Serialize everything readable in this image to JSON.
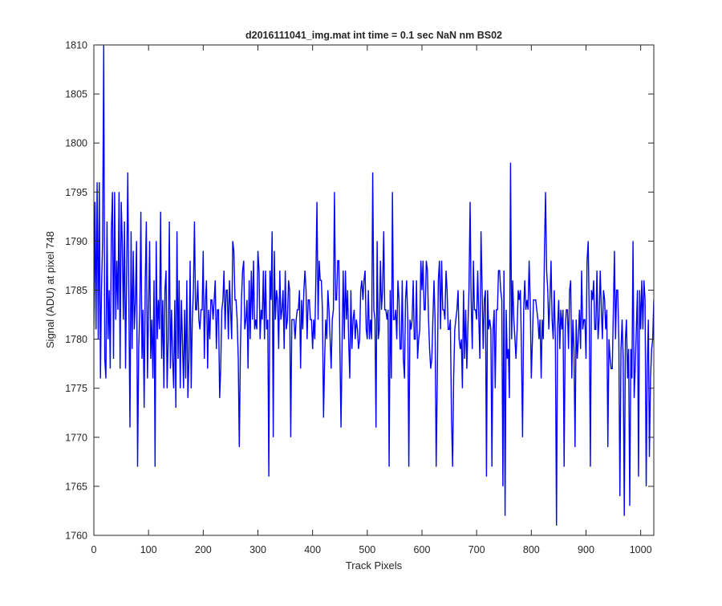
{
  "chart_data": {
    "type": "line",
    "title": "d2016111041_img.mat int time = 0.1 sec  NaN nm BS02",
    "xlabel": "Track Pixels",
    "ylabel": "Signal (ADU) at pixel 748",
    "xlim": [
      0,
      1024
    ],
    "ylim": [
      1760,
      1810
    ],
    "xticks": [
      "0",
      "100",
      "200",
      "300",
      "400",
      "500",
      "600",
      "700",
      "800",
      "900",
      "1000"
    ],
    "yticks": [
      "1760",
      "1765",
      "1770",
      "1775",
      "1780",
      "1785",
      "1790",
      "1795",
      "1800",
      "1805",
      "1810"
    ],
    "grid": false,
    "legend": "none",
    "line_color": "#0000ff",
    "noise_mean": 1783,
    "noise_std": 4.2,
    "series": [
      {
        "points": [
          [
            0,
            1781
          ],
          [
            2,
            1794
          ],
          [
            4,
            1781
          ],
          [
            6,
            1796
          ],
          [
            8,
            1780
          ],
          [
            10,
            1796
          ],
          [
            12,
            1776
          ],
          [
            14,
            1785
          ],
          [
            16,
            1790
          ],
          [
            18,
            1810
          ],
          [
            20,
            1778
          ],
          [
            22,
            1776
          ],
          [
            24,
            1792
          ],
          [
            26,
            1780
          ],
          [
            28,
            1785
          ],
          [
            30,
            1777
          ],
          [
            32,
            1791
          ],
          [
            34,
            1795
          ],
          [
            36,
            1778
          ],
          [
            38,
            1795
          ],
          [
            40,
            1782
          ],
          [
            42,
            1788
          ],
          [
            44,
            1783
          ],
          [
            46,
            1795
          ],
          [
            48,
            1777
          ],
          [
            50,
            1794
          ],
          [
            52,
            1790
          ],
          [
            54,
            1782
          ],
          [
            56,
            1792
          ],
          [
            58,
            1777
          ],
          [
            60,
            1787
          ],
          [
            62,
            1797
          ],
          [
            64,
            1784
          ],
          [
            66,
            1771
          ],
          [
            68,
            1791
          ],
          [
            70,
            1779
          ],
          [
            72,
            1789
          ],
          [
            74,
            1781
          ],
          [
            76,
            1784
          ],
          [
            78,
            1790
          ],
          [
            80,
            1767
          ],
          [
            82,
            1779
          ],
          [
            84,
            1783
          ],
          [
            86,
            1793
          ],
          [
            88,
            1778
          ],
          [
            90,
            1783
          ],
          [
            92,
            1773
          ],
          [
            94,
            1786
          ],
          [
            96,
            1792
          ],
          [
            98,
            1776
          ],
          [
            100,
            1783
          ],
          [
            102,
            1790
          ],
          [
            104,
            1778
          ],
          [
            106,
            1782
          ],
          [
            108,
            1776
          ],
          [
            110,
            1786
          ],
          [
            112,
            1767
          ],
          [
            114,
            1790
          ],
          [
            116,
            1780
          ],
          [
            118,
            1784
          ],
          [
            120,
            1781
          ],
          [
            122,
            1793
          ],
          [
            124,
            1778
          ],
          [
            126,
            1784
          ],
          [
            128,
            1775
          ],
          [
            130,
            1785
          ],
          [
            132,
            1787
          ],
          [
            134,
            1775
          ],
          [
            136,
            1780
          ],
          [
            138,
            1792
          ],
          [
            140,
            1777
          ],
          [
            142,
            1783
          ],
          [
            144,
            1778
          ],
          [
            146,
            1775
          ],
          [
            148,
            1784
          ],
          [
            150,
            1773
          ],
          [
            152,
            1791
          ],
          [
            154,
            1778
          ],
          [
            156,
            1786
          ],
          [
            158,
            1775
          ],
          [
            160,
            1784
          ],
          [
            162,
            1780
          ],
          [
            164,
            1775
          ],
          [
            166,
            1783
          ],
          [
            168,
            1776
          ],
          [
            170,
            1786
          ],
          [
            172,
            1774
          ],
          [
            174,
            1778
          ],
          [
            176,
            1788
          ],
          [
            178,
            1775
          ]
        ]
      }
    ]
  }
}
